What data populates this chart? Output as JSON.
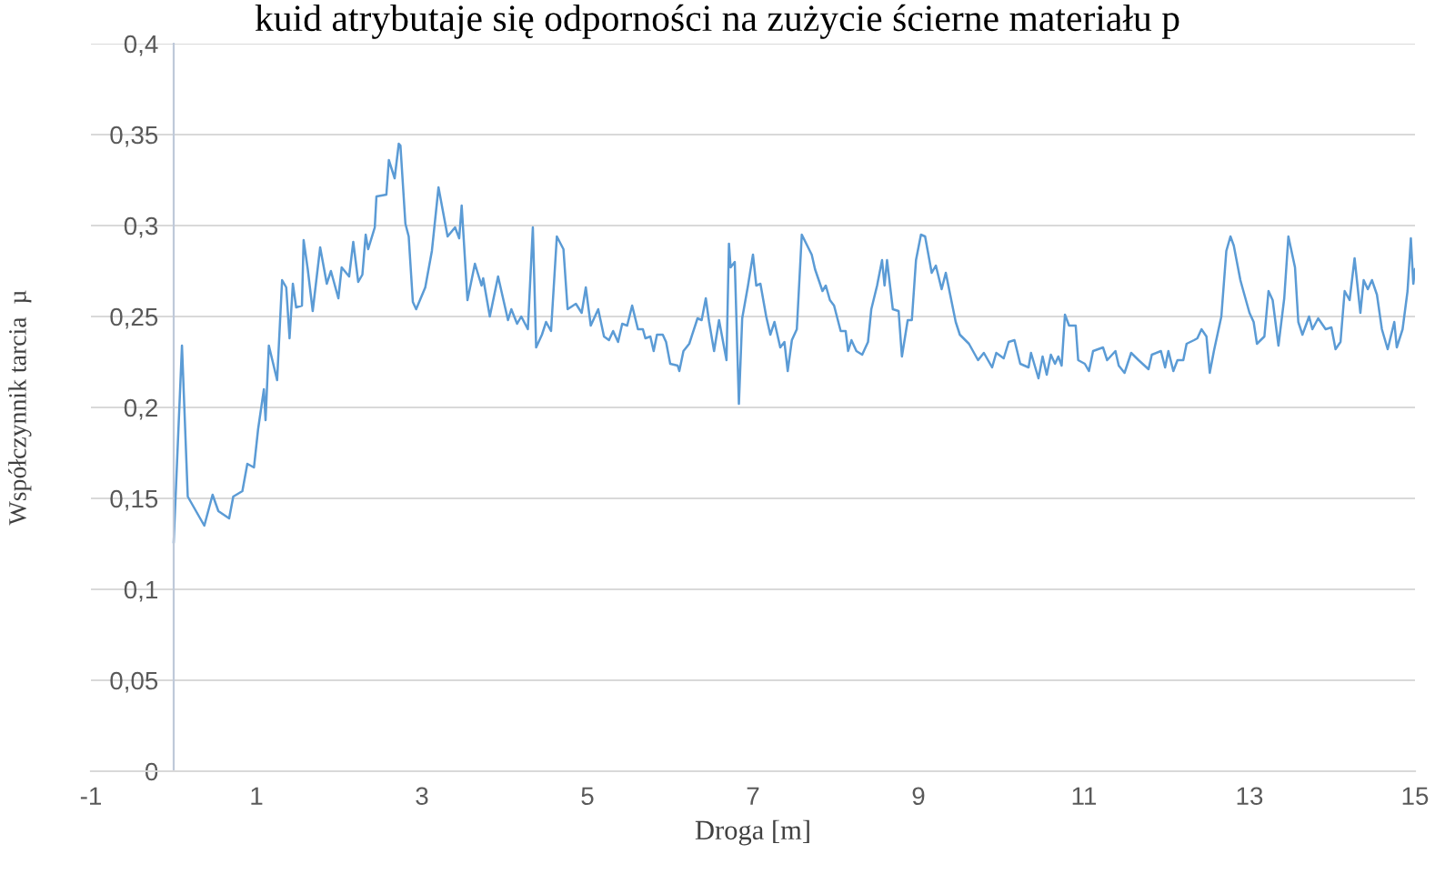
{
  "chart_data": {
    "type": "line",
    "title": "kuid atrybutaje się odporności na zużycie ścierne materiału p",
    "xlabel": "Droga [m]",
    "ylabel": "Współczynnik tarcia  µ",
    "xlim": [
      -1,
      15
    ],
    "xticks": [
      -1,
      1,
      3,
      5,
      7,
      9,
      11,
      13,
      15
    ],
    "ylim": [
      0,
      0.4
    ],
    "yticks": [
      {
        "value": 0,
        "label": "0"
      },
      {
        "value": 0.05,
        "label": "0,05"
      },
      {
        "value": 0.1,
        "label": "0,1"
      },
      {
        "value": 0.15,
        "label": "0,15"
      },
      {
        "value": 0.2,
        "label": "0,2"
      },
      {
        "value": 0.25,
        "label": "0,25"
      },
      {
        "value": 0.3,
        "label": "0,3"
      },
      {
        "value": 0.35,
        "label": "0,35"
      },
      {
        "value": 0.4,
        "label": "0,4"
      }
    ],
    "grid": "y",
    "marker": "none",
    "line_style": "solid",
    "series": [
      {
        "color": "#5b9bd5",
        "x": [
          0.0,
          0.1,
          0.17,
          0.37,
          0.47,
          0.54,
          0.67,
          0.72,
          0.83,
          0.89,
          0.97,
          1.02,
          1.09,
          1.11,
          1.15,
          1.25,
          1.31,
          1.36,
          1.4,
          1.44,
          1.48,
          1.55,
          1.57,
          1.62,
          1.68,
          1.77,
          1.85,
          1.9,
          1.99,
          2.03,
          2.12,
          2.17,
          2.23,
          2.28,
          2.32,
          2.35,
          2.43,
          2.45,
          2.57,
          2.6,
          2.67,
          2.72,
          2.74,
          2.8,
          2.84,
          2.89,
          2.93,
          3.04,
          3.12,
          3.2,
          3.31,
          3.4,
          3.45,
          3.48,
          3.55,
          3.64,
          3.72,
          3.74,
          3.82,
          3.92,
          4.04,
          4.08,
          4.15,
          4.2,
          4.28,
          4.34,
          4.38,
          4.45,
          4.5,
          4.56,
          4.63,
          4.71,
          4.76,
          4.86,
          4.93,
          4.98,
          5.04,
          5.13,
          5.2,
          5.26,
          5.31,
          5.37,
          5.42,
          5.48,
          5.54,
          5.61,
          5.67,
          5.7,
          5.76,
          5.8,
          5.84,
          5.91,
          5.95,
          6.0,
          6.09,
          6.11,
          6.16,
          6.23,
          6.33,
          6.38,
          6.43,
          6.47,
          6.53,
          6.59,
          6.68,
          6.71,
          6.73,
          6.78,
          6.83,
          6.87,
          6.94,
          7.0,
          7.04,
          7.09,
          7.16,
          7.21,
          7.26,
          7.33,
          7.38,
          7.42,
          7.47,
          7.53,
          7.59,
          7.71,
          7.75,
          7.84,
          7.88,
          7.93,
          7.98,
          8.06,
          8.12,
          8.15,
          8.19,
          8.25,
          8.32,
          8.39,
          8.43,
          8.5,
          8.56,
          8.59,
          8.62,
          8.69,
          8.76,
          8.8,
          8.87,
          8.92,
          8.97,
          9.03,
          9.08,
          9.16,
          9.21,
          9.28,
          9.33,
          9.45,
          9.5,
          9.61,
          9.72,
          9.79,
          9.89,
          9.94,
          10.03,
          10.09,
          10.16,
          10.23,
          10.33,
          10.36,
          10.45,
          10.5,
          10.55,
          10.6,
          10.65,
          10.69,
          10.73,
          10.77,
          10.82,
          10.9,
          10.93,
          11.01,
          11.06,
          11.11,
          11.23,
          11.28,
          11.38,
          11.42,
          11.49,
          11.57,
          11.66,
          11.78,
          11.82,
          11.93,
          11.98,
          12.02,
          12.08,
          12.13,
          12.2,
          12.24,
          12.33,
          12.37,
          12.42,
          12.48,
          12.52,
          12.57,
          12.66,
          12.72,
          12.77,
          12.81,
          12.89,
          12.92,
          13.0,
          13.05,
          13.09,
          13.18,
          13.23,
          13.28,
          13.35,
          13.42,
          13.47,
          13.55,
          13.59,
          13.64,
          13.72,
          13.76,
          13.83,
          13.92,
          13.99,
          14.04,
          14.1,
          14.15,
          14.21,
          14.27,
          14.34,
          14.38,
          14.43,
          14.48,
          14.54,
          14.6,
          14.67,
          14.75,
          14.78,
          14.85,
          14.91,
          14.95,
          14.98,
          15.0
        ],
        "values": [
          0.126,
          0.234,
          0.151,
          0.135,
          0.152,
          0.143,
          0.139,
          0.151,
          0.154,
          0.169,
          0.167,
          0.188,
          0.21,
          0.193,
          0.234,
          0.215,
          0.27,
          0.266,
          0.238,
          0.268,
          0.255,
          0.256,
          0.292,
          0.276,
          0.253,
          0.288,
          0.268,
          0.275,
          0.26,
          0.277,
          0.272,
          0.291,
          0.269,
          0.273,
          0.295,
          0.287,
          0.299,
          0.316,
          0.317,
          0.336,
          0.326,
          0.345,
          0.344,
          0.301,
          0.294,
          0.258,
          0.254,
          0.266,
          0.286,
          0.321,
          0.294,
          0.299,
          0.293,
          0.311,
          0.259,
          0.279,
          0.267,
          0.271,
          0.25,
          0.272,
          0.248,
          0.254,
          0.246,
          0.25,
          0.243,
          0.299,
          0.233,
          0.24,
          0.247,
          0.242,
          0.294,
          0.287,
          0.254,
          0.257,
          0.252,
          0.266,
          0.245,
          0.254,
          0.239,
          0.237,
          0.242,
          0.236,
          0.246,
          0.245,
          0.256,
          0.243,
          0.243,
          0.238,
          0.239,
          0.231,
          0.24,
          0.24,
          0.236,
          0.224,
          0.223,
          0.22,
          0.231,
          0.235,
          0.249,
          0.248,
          0.26,
          0.247,
          0.231,
          0.248,
          0.226,
          0.29,
          0.277,
          0.28,
          0.202,
          0.249,
          0.267,
          0.284,
          0.267,
          0.268,
          0.25,
          0.24,
          0.247,
          0.233,
          0.236,
          0.22,
          0.237,
          0.243,
          0.295,
          0.284,
          0.276,
          0.264,
          0.267,
          0.259,
          0.256,
          0.242,
          0.242,
          0.231,
          0.237,
          0.231,
          0.229,
          0.236,
          0.254,
          0.267,
          0.281,
          0.267,
          0.281,
          0.254,
          0.253,
          0.228,
          0.248,
          0.248,
          0.281,
          0.295,
          0.294,
          0.274,
          0.278,
          0.265,
          0.274,
          0.247,
          0.24,
          0.235,
          0.226,
          0.23,
          0.222,
          0.23,
          0.227,
          0.236,
          0.237,
          0.224,
          0.222,
          0.23,
          0.216,
          0.228,
          0.218,
          0.229,
          0.224,
          0.228,
          0.223,
          0.251,
          0.245,
          0.245,
          0.226,
          0.224,
          0.22,
          0.231,
          0.233,
          0.226,
          0.231,
          0.223,
          0.219,
          0.23,
          0.226,
          0.221,
          0.229,
          0.231,
          0.222,
          0.231,
          0.22,
          0.226,
          0.226,
          0.235,
          0.237,
          0.238,
          0.243,
          0.239,
          0.219,
          0.231,
          0.25,
          0.286,
          0.294,
          0.289,
          0.27,
          0.265,
          0.252,
          0.247,
          0.235,
          0.239,
          0.264,
          0.259,
          0.234,
          0.26,
          0.294,
          0.277,
          0.247,
          0.24,
          0.25,
          0.243,
          0.249,
          0.243,
          0.244,
          0.232,
          0.236,
          0.264,
          0.259,
          0.282,
          0.252,
          0.27,
          0.265,
          0.27,
          0.262,
          0.243,
          0.232,
          0.247,
          0.233,
          0.243,
          0.264,
          0.293,
          0.268,
          0.276
        ]
      }
    ]
  }
}
